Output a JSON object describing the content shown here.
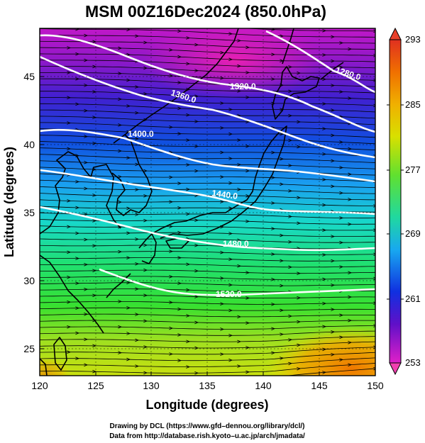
{
  "title": "MSM 00Z16Dec2024 (850.0hPa)",
  "xlabel": "Longitude (degrees)",
  "ylabel": "Latitude  (degrees)",
  "x_ticks": [
    "120",
    "125",
    "130",
    "135",
    "140",
    "145",
    "150"
  ],
  "y_ticks": [
    "25",
    "30",
    "35",
    "40",
    "45"
  ],
  "colorbar": {
    "ticks": [
      "293",
      "285",
      "277",
      "269",
      "261",
      "253"
    ],
    "min": 253,
    "max": 293,
    "colors": {
      "top": "#e8402a",
      "orange": "#f08c00",
      "yellow": "#e8e000",
      "green": "#38d830",
      "cyan": "#20d8c8",
      "blue": "#1050e0",
      "navy": "#1010b0",
      "purple": "#8010c0",
      "magenta": "#e020c8",
      "bottom": "#f040b0"
    }
  },
  "contour_labels": [
    "1280.0",
    "1320.0",
    "1360.0",
    "1400.0",
    "1440.0",
    "1480.0",
    "1520.0"
  ],
  "credit": {
    "line1": "Drawing by DCL (https://www.gfd–dennou.org/library/dcl/)",
    "line2": "Data from http://database.rish.kyoto–u.ac.jp/arch/jmadata/"
  },
  "chart_data": {
    "type": "map",
    "projection": "equirectangular",
    "xlim": [
      120,
      150
    ],
    "ylim": [
      22.5,
      48
    ],
    "level_hPa": 850.0,
    "time": "00Z16Dec2024",
    "shading": "temperature (K)",
    "shading_range": [
      253,
      293
    ],
    "contour_field": "geopotential height (m)",
    "contour_values": [
      1280,
      1320,
      1360,
      1400,
      1440,
      1480,
      1520
    ],
    "vectors": "wind streamlines",
    "approx_flow": "westerly, northwesterly over Sea of Japan, southwesterly near 23N 145E"
  }
}
